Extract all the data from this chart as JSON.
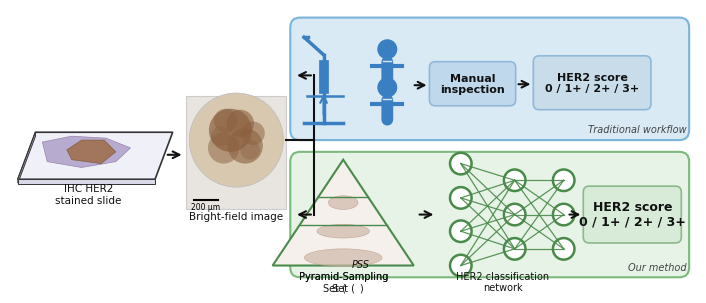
{
  "bg_color": "#ffffff",
  "blue": "#3a7fc1",
  "green": "#4a8a4a",
  "blue_box_bg": "#daeaf5",
  "blue_box_edge": "#7ab4d8",
  "green_box_bg": "#e8f3e8",
  "green_box_edge": "#7aba7a",
  "manual_box_bg": "#c0d8ec",
  "manual_box_edge": "#90b8d8",
  "her2_top_bg": "#c8dcea",
  "her2_top_edge": "#90b8d8",
  "her2_bot_bg": "#d8ebd8",
  "her2_bot_edge": "#8aba8a",
  "arrow_color": "#111111",
  "text_color": "#111111",
  "slide_face": "#e8e8f0",
  "slide_tissue1": "#8878a0",
  "slide_tissue2": "#a07858",
  "bf_face": "#e8e0d8",
  "label_ihc": "IHC HER2\nstained slide",
  "label_bf": "Bright-field image",
  "label_scale": "200 μm",
  "label_trad": "Traditional workflow",
  "label_our": "Our method",
  "label_pss": "Pyramid-Sampling\nSet (PSS)",
  "label_her2net": "HER2 classification\nnetwork",
  "label_manual": "Manual\ninspection",
  "label_her2score_top": "HER2 score\n0 / 1+ / 2+ / 3+",
  "label_her2score_bot": "HER2 score\n0 / 1+ / 2+ / 3+"
}
